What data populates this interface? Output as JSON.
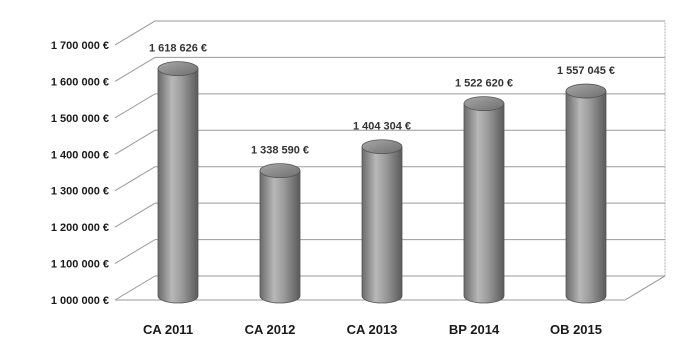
{
  "chart_data": {
    "type": "bar",
    "style": "3d-cylinder",
    "categories": [
      "CA 2011",
      "CA 2012",
      "CA 2013",
      "BP 2014",
      "OB 2015"
    ],
    "values": [
      1618626,
      1338590,
      1404304,
      1522620,
      1557045
    ],
    "data_labels": [
      "1 618 626 €",
      "1 338 590 €",
      "1 404 304 €",
      "1 522 620 €",
      "1 557 045 €"
    ],
    "ylim": [
      1000000,
      1700000
    ],
    "y_ticks": [
      1000000,
      1100000,
      1200000,
      1300000,
      1400000,
      1500000,
      1600000,
      1700000
    ],
    "y_tick_labels": [
      "1 000 000 €",
      "1 100 000 €",
      "1 200 000 €",
      "1 300 000 €",
      "1 400 000 €",
      "1 500 000 €",
      "1 600 000 €",
      "1 700 000 €"
    ],
    "grid": true,
    "title": "",
    "xlabel": "",
    "ylabel": "",
    "colors": {
      "bar": "#8c8c8c",
      "bar_dark": "#5e5e5e",
      "bar_light": "#c4c4c4",
      "grid": "#9a9a9a",
      "frame": "#b0b0b0"
    }
  }
}
